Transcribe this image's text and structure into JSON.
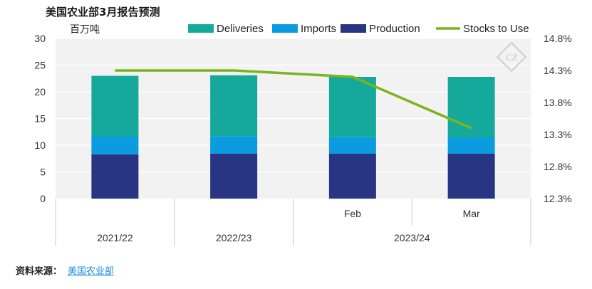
{
  "title": "美国农业部3月报告预测",
  "source": {
    "label": "资料来源：",
    "link_text": "美国农业部"
  },
  "watermark_text": "CZ",
  "colors": {
    "deliveries": "#15a99c",
    "imports": "#0a9be0",
    "production": "#283582",
    "stocks_to_use": "#7ab51d",
    "plot_bg": "#f2f2f2",
    "grid": "#ffffff",
    "axis_text": "#333333"
  },
  "chart_data": {
    "type": "bar",
    "stacked": true,
    "title": "美国农业部3月报告预测",
    "ylabel": "百万吨",
    "y2label": "",
    "ylim": [
      0,
      30
    ],
    "yticks": [
      0,
      5,
      10,
      15,
      20,
      25,
      30
    ],
    "y2lim": [
      12.3,
      14.8
    ],
    "y2ticks": [
      "12.3%",
      "12.8%",
      "13.3%",
      "13.8%",
      "14.3%",
      "14.8%"
    ],
    "y2tick_values": [
      12.3,
      12.8,
      13.3,
      13.8,
      14.3,
      14.8
    ],
    "grid": true,
    "legend_position": "top",
    "categories": [
      "2021/22",
      "2022/23",
      "Feb",
      "Mar"
    ],
    "category_groups": [
      {
        "label": "2021/22",
        "members": [
          0
        ]
      },
      {
        "label": "2022/23",
        "members": [
          1
        ]
      },
      {
        "label": "2023/24",
        "members": [
          2,
          3
        ]
      }
    ],
    "sub_labels": [
      "",
      "",
      "Feb",
      "Mar"
    ],
    "series": [
      {
        "name": "Production",
        "values": [
          8.3,
          8.4,
          8.4,
          8.4
        ]
      },
      {
        "name": "Imports",
        "values": [
          3.3,
          3.3,
          3.1,
          3.0
        ]
      },
      {
        "name": "Deliveries",
        "values": [
          11.4,
          11.4,
          11.3,
          11.4
        ]
      }
    ],
    "line_series": {
      "name": "Stocks to Use",
      "axis": "right",
      "values": [
        14.3,
        14.3,
        14.2,
        13.4
      ]
    },
    "legend_order": [
      "Deliveries",
      "Imports",
      "Production",
      "Stocks to Use"
    ]
  }
}
